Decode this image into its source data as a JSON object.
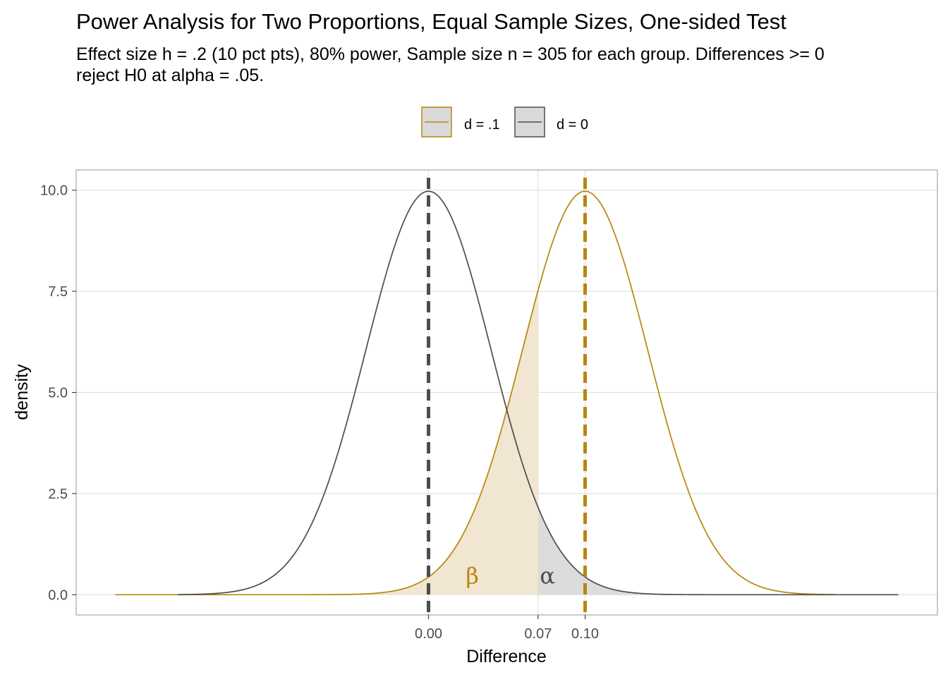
{
  "chart_data": {
    "type": "area",
    "title": "Power Analysis for Two Proportions, Equal Sample Sizes, One-sided Test",
    "subtitle_lines": [
      "Effect size h = .2 (10 pct pts), 80% power, Sample size n = 305 for each group. Differences >= 0",
      "reject H0 at alpha = .05."
    ],
    "xlabel": "Difference",
    "ylabel": "density",
    "xlim": [
      -0.225,
      0.325
    ],
    "ylim": [
      -0.5,
      10.5
    ],
    "x_ticks": [
      0.0,
      0.07,
      0.1
    ],
    "x_tick_labels": [
      "0.00",
      "0.07",
      "0.10"
    ],
    "y_ticks": [
      0.0,
      2.5,
      5.0,
      7.5,
      10.0
    ],
    "y_tick_labels": [
      "0.0",
      "2.5",
      "5.0",
      "7.5",
      "10.0"
    ],
    "grid": true,
    "legend_position": "top",
    "critical_value": 0.07,
    "series": [
      {
        "name": "d = .1",
        "mean": 0.1,
        "sd": 0.04,
        "x_range": [
          -0.2,
          0.26
        ],
        "color": "#b8860b",
        "fill": "#f0e6d2",
        "shaded_region": [
          -0.2,
          0.07
        ],
        "shaded_label": "β",
        "shaded_label_x": 0.028,
        "shaded_label_y": 0.45
      },
      {
        "name": "d = 0",
        "mean": 0.0,
        "sd": 0.04,
        "x_range": [
          -0.16,
          0.3
        ],
        "color": "#4d4d4d",
        "fill": "#dcdcdc",
        "shaded_region": [
          0.07,
          0.3
        ],
        "shaded_label": "α",
        "shaded_label_x": 0.076,
        "shaded_label_y": 0.45
      }
    ],
    "vlines": [
      {
        "x": 0.0,
        "color": "#4d4d4d"
      },
      {
        "x": 0.1,
        "color": "#b8860b"
      }
    ]
  }
}
